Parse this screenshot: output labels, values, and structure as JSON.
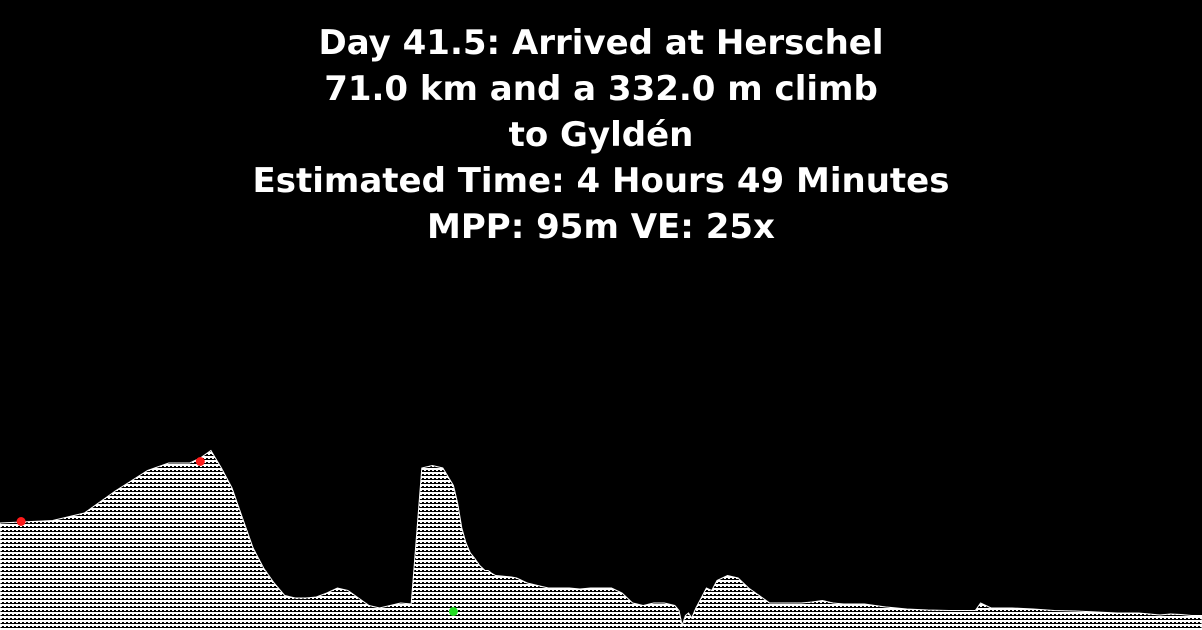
{
  "header": {
    "line1": "Day 41.5: Arrived at Herschel",
    "line2": "71.0 km and a 332.0 m climb",
    "line3": "to Gyldén",
    "line4": "Estimated Time: 4 Hours 49 Minutes",
    "line5": "MPP: 95m VE: 25x"
  },
  "colors": {
    "background": "#000000",
    "text": "#ffffff",
    "terrain_fill": "#ffffff",
    "marker_red": "#ff1a1a",
    "marker_green": "#22dd22"
  },
  "chart_data": {
    "type": "area",
    "title": "Day 41.5: Arrived at Herschel",
    "xlabel": "",
    "ylabel": "",
    "grid": false,
    "legend": "none",
    "x_unit": "km",
    "y_unit": "m",
    "xlim": [
      0,
      114
    ],
    "ylim": [
      0,
      620
    ],
    "x": [
      0,
      5,
      8,
      11,
      14,
      16,
      18,
      19,
      20,
      21,
      22,
      23,
      24,
      25,
      26,
      27,
      28,
      29,
      30,
      31,
      32,
      33,
      34,
      35,
      36,
      37,
      38,
      39,
      40,
      41,
      42,
      43,
      43.4,
      43.8,
      44.2,
      44.6,
      45,
      45.5,
      46,
      46.3,
      46.6,
      47,
      48,
      48.5,
      49,
      49.5,
      50,
      51,
      52,
      53,
      54,
      55,
      56,
      57,
      58,
      59,
      60,
      61,
      62,
      63,
      64,
      64.4,
      64.7,
      65,
      65.3,
      65.6,
      66,
      66.5,
      67,
      67.5,
      68,
      68.5,
      69,
      70,
      71,
      72,
      73,
      74,
      75,
      76,
      77,
      78,
      79,
      80,
      82,
      84,
      86,
      88,
      90,
      92,
      92.5,
      93,
      94,
      96,
      98,
      100,
      102,
      104,
      106,
      108,
      110,
      111,
      112,
      112.5,
      113,
      114
    ],
    "y": [
      190,
      195,
      210,
      255,
      295,
      310,
      310,
      320,
      335,
      300,
      260,
      200,
      140,
      100,
      70,
      45,
      40,
      40,
      42,
      50,
      60,
      55,
      40,
      25,
      20,
      25,
      30,
      28,
      300,
      305,
      300,
      265,
      230,
      180,
      150,
      130,
      120,
      105,
      95,
      95,
      90,
      85,
      83,
      82,
      80,
      75,
      70,
      65,
      60,
      60,
      60,
      58,
      60,
      60,
      60,
      50,
      30,
      25,
      30,
      30,
      25,
      15,
      -15,
      5,
      10,
      0,
      20,
      40,
      60,
      55,
      75,
      80,
      85,
      80,
      60,
      45,
      30,
      30,
      30,
      30,
      32,
      35,
      30,
      28,
      28,
      22,
      18,
      16,
      15,
      15,
      15,
      30,
      20,
      20,
      18,
      15,
      14,
      12,
      10,
      10,
      6,
      8,
      7,
      6,
      5,
      5
    ],
    "markers": [
      {
        "x": 2,
        "y": 195,
        "color": "red"
      },
      {
        "x": 19,
        "y": 315,
        "color": "red"
      },
      {
        "x": 43,
        "y": 15,
        "color": "green"
      }
    ]
  }
}
